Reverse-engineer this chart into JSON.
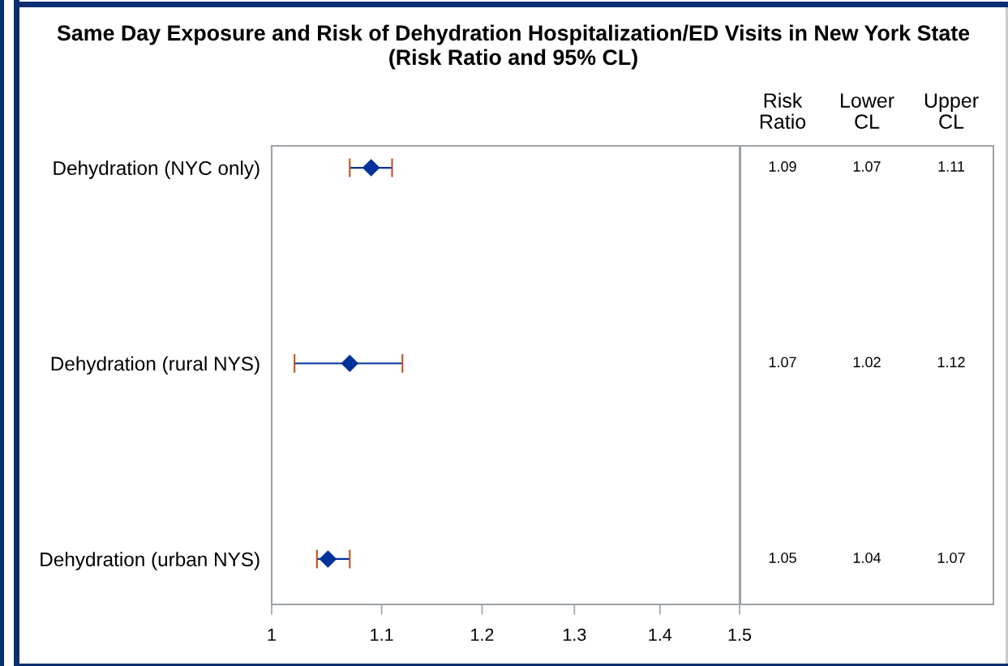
{
  "chart_data": [
    {
      "type": "scatter",
      "orientation": "horizontal",
      "title": "Same Day Exposure and Risk of Dehydration Hospitalization/ED Visits in New York State",
      "subtitle": "(Risk Ratio and 95% CL)",
      "categories": [
        "Dehydration (NYC only)",
        "Dehydration (rural NYS)",
        "Dehydration (urban NYS)"
      ],
      "values": [
        1.09,
        1.07,
        1.05
      ],
      "errors": [
        [
          1.07,
          1.11
        ],
        [
          1.02,
          1.12
        ],
        [
          1.04,
          1.07
        ]
      ],
      "color": "#003399",
      "marker": "diamond",
      "log": "x",
      "xlim": [
        1,
        1.5
      ],
      "xticks": [
        1,
        1.1,
        1.2,
        1.3,
        1.4,
        1.5
      ]
    },
    {
      "type": "other",
      "categories": [
        "Risk Ratio",
        "Lower CL",
        "Upper CL"
      ],
      "annotations": [
        "1.09",
        "1.07",
        "1.11",
        "1.07",
        "1.02",
        "1.12",
        "1.05",
        "1.04",
        "1.07"
      ]
    }
  ]
}
